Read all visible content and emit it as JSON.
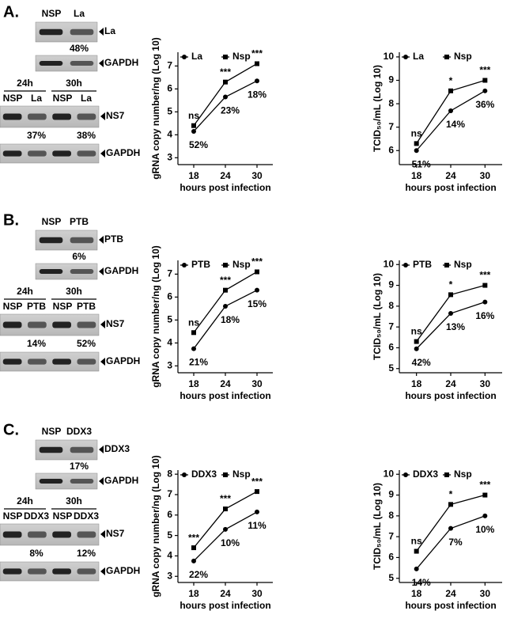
{
  "panels": [
    {
      "label": "A.",
      "top_lanes": [
        "NSP",
        "La"
      ],
      "top_bands": [
        "La",
        "GAPDH"
      ],
      "top_percent": "48%",
      "times": [
        "24h",
        "30h"
      ],
      "lanes": [
        "NSP",
        "La",
        "NSP",
        "La"
      ],
      "bands": [
        "NS7",
        "GAPDH"
      ],
      "percents": [
        "37%",
        "38%"
      ]
    },
    {
      "label": "B.",
      "top_lanes": [
        "NSP",
        "PTB"
      ],
      "top_bands": [
        "PTB",
        "GAPDH"
      ],
      "top_percent": "6%",
      "times": [
        "24h",
        "30h"
      ],
      "lanes": [
        "NSP",
        "PTB",
        "NSP",
        "PTB"
      ],
      "bands": [
        "NS7",
        "GAPDH"
      ],
      "percents": [
        "14%",
        "52%"
      ]
    },
    {
      "label": "C.",
      "top_lanes": [
        "NSP",
        "DDX3"
      ],
      "top_bands": [
        "DDX3",
        "GAPDH"
      ],
      "top_percent": "17%",
      "times": [
        "24h",
        "30h"
      ],
      "lanes": [
        "NSP",
        "DDX3",
        "NSP",
        "DDX3"
      ],
      "bands": [
        "NS7",
        "GAPDH"
      ],
      "percents": [
        "8%",
        "12%"
      ]
    }
  ],
  "chart_data": [
    {
      "type": "line",
      "ylabel": "gRNA copy number/ng (Log 10)",
      "xlabel": "hours post infection",
      "x": [
        18,
        24,
        30
      ],
      "xlim": [
        15,
        33
      ],
      "ylim": [
        2.7,
        7.6
      ],
      "yticks": [
        3,
        4,
        5,
        6,
        7
      ],
      "series": [
        {
          "name": "La",
          "color": "#000000",
          "marker": "circle",
          "values": [
            4.15,
            5.65,
            6.35
          ]
        },
        {
          "name": "Nsp",
          "color": "#000000",
          "marker": "square",
          "values": [
            4.4,
            6.3,
            7.1
          ]
        }
      ],
      "significance": [
        "ns",
        "***",
        "***"
      ],
      "percent_labels": [
        "52%",
        "23%",
        "18%"
      ]
    },
    {
      "type": "line",
      "ylabel": "TCID₅₀/mL (Log 10)",
      "xlabel": "hours post infection",
      "x": [
        18,
        24,
        30
      ],
      "xlim": [
        15,
        33
      ],
      "ylim": [
        5.4,
        10.2
      ],
      "yticks": [
        6,
        7,
        8,
        9,
        10
      ],
      "series": [
        {
          "name": "La",
          "color": "#000000",
          "marker": "circle",
          "values": [
            6.0,
            7.7,
            8.55
          ]
        },
        {
          "name": "Nsp",
          "color": "#000000",
          "marker": "square",
          "values": [
            6.3,
            8.55,
            9.0
          ]
        }
      ],
      "significance": [
        "ns",
        "*",
        "***"
      ],
      "percent_labels": [
        "51%",
        "14%",
        "36%"
      ]
    },
    {
      "type": "line",
      "ylabel": "gRNA copy number/ng (Log 10)",
      "xlabel": "hours post infection",
      "x": [
        18,
        24,
        30
      ],
      "xlim": [
        15,
        33
      ],
      "ylim": [
        2.7,
        7.6
      ],
      "yticks": [
        3,
        4,
        5,
        6,
        7
      ],
      "series": [
        {
          "name": "PTB",
          "color": "#000000",
          "marker": "circle",
          "values": [
            3.75,
            5.6,
            6.3
          ]
        },
        {
          "name": "Nsp",
          "color": "#000000",
          "marker": "square",
          "values": [
            4.45,
            6.3,
            7.1
          ]
        }
      ],
      "significance": [
        "ns",
        "***",
        "***"
      ],
      "percent_labels": [
        "21%",
        "18%",
        "15%"
      ]
    },
    {
      "type": "line",
      "ylabel": "TCID₅₀/mL (Log 10)",
      "xlabel": "hours post infection",
      "x": [
        18,
        24,
        30
      ],
      "xlim": [
        15,
        33
      ],
      "ylim": [
        4.8,
        10.2
      ],
      "yticks": [
        5,
        6,
        7,
        8,
        9,
        10
      ],
      "series": [
        {
          "name": "PTB",
          "color": "#000000",
          "marker": "circle",
          "values": [
            5.95,
            7.65,
            8.2
          ]
        },
        {
          "name": "Nsp",
          "color": "#000000",
          "marker": "square",
          "values": [
            6.3,
            8.55,
            9.0
          ]
        }
      ],
      "significance": [
        "ns",
        "*",
        "***"
      ],
      "percent_labels": [
        "42%",
        "13%",
        "16%"
      ]
    },
    {
      "type": "line",
      "ylabel": "gRNA copy number/ng (Log 10)",
      "xlabel": "hours post infection",
      "x": [
        18,
        24,
        30
      ],
      "xlim": [
        15,
        33
      ],
      "ylim": [
        2.7,
        8.2
      ],
      "yticks": [
        3,
        4,
        5,
        6,
        7,
        8
      ],
      "series": [
        {
          "name": "DDX3",
          "color": "#000000",
          "marker": "circle",
          "values": [
            3.75,
            5.3,
            6.15
          ]
        },
        {
          "name": "Nsp",
          "color": "#000000",
          "marker": "square",
          "values": [
            4.4,
            6.3,
            7.15
          ]
        }
      ],
      "significance": [
        "***",
        "***",
        "***"
      ],
      "percent_labels": [
        "22%",
        "10%",
        "11%"
      ]
    },
    {
      "type": "line",
      "ylabel": "TCID₅₀/mL (Log 10)",
      "xlabel": "hours post infection",
      "x": [
        18,
        24,
        30
      ],
      "xlim": [
        15,
        33
      ],
      "ylim": [
        4.8,
        10.2
      ],
      "yticks": [
        5,
        6,
        7,
        8,
        9,
        10
      ],
      "series": [
        {
          "name": "DDX3",
          "color": "#000000",
          "marker": "circle",
          "values": [
            5.45,
            7.4,
            8.0
          ]
        },
        {
          "name": "Nsp",
          "color": "#000000",
          "marker": "square",
          "values": [
            6.3,
            8.55,
            9.0
          ]
        }
      ],
      "significance": [
        "ns",
        "*",
        "***"
      ],
      "percent_labels": [
        "14%",
        "7%",
        "10%"
      ]
    }
  ]
}
